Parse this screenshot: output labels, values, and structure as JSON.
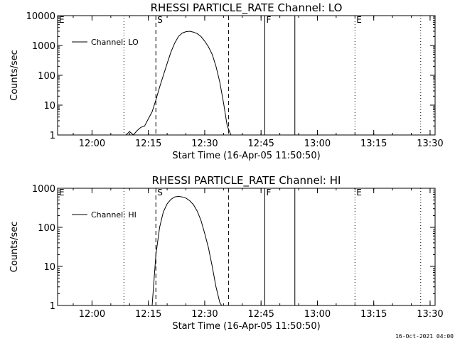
{
  "footer_timestamp": "16-Oct-2021 04:00",
  "chart_data": [
    {
      "type": "line",
      "title": "RHESSI PARTICLE_RATE Channel: LO",
      "xlabel": "Start Time (16-Apr-05 11:50:50)",
      "ylabel": "Counts/sec",
      "yscale": "log",
      "ylim": [
        1,
        10000
      ],
      "xlim": [
        "11:50:50",
        "13:31:20"
      ],
      "x_ticks": [
        "12:00",
        "12:15",
        "12:30",
        "12:45",
        "13:00",
        "13:15",
        "13:30"
      ],
      "y_ticks": [
        "1",
        "10",
        "100",
        "1000",
        "10000"
      ],
      "legend": {
        "entries": [
          "Channel: LO"
        ],
        "position": "top-left"
      },
      "series": [
        {
          "name": "Channel: LO",
          "x": [
            "12:09",
            "12:10",
            "12:11",
            "12:12",
            "12:13",
            "12:14",
            "12:15",
            "12:16",
            "12:17",
            "12:18",
            "12:19",
            "12:20",
            "12:21",
            "12:22",
            "12:23",
            "12:24",
            "12:25",
            "12:26",
            "12:27",
            "12:28",
            "12:29",
            "12:30",
            "12:31",
            "12:32",
            "12:33",
            "12:34",
            "12:35",
            "12:36",
            "12:37"
          ],
          "y": [
            1,
            1.3,
            1,
            1.4,
            1.8,
            2,
            3.5,
            6,
            15,
            40,
            100,
            250,
            600,
            1200,
            2000,
            2600,
            2900,
            3000,
            2800,
            2500,
            2000,
            1400,
            900,
            500,
            200,
            60,
            12,
            2,
            1
          ]
        }
      ],
      "markers": [
        {
          "label": "E",
          "time": "11:50:50",
          "style": "dotted"
        },
        {
          "label": "",
          "time": "12:08:30",
          "style": "dotted"
        },
        {
          "label": "S",
          "time": "12:17:00",
          "style": "dashed"
        },
        {
          "label": "",
          "time": "12:36:20",
          "style": "dashed"
        },
        {
          "label": "F",
          "time": "12:46:00",
          "style": "solid"
        },
        {
          "label": "",
          "time": "12:54:00",
          "style": "solid"
        },
        {
          "label": "E",
          "time": "13:10:00",
          "style": "dotted"
        },
        {
          "label": "",
          "time": "13:27:30",
          "style": "dotted"
        }
      ]
    },
    {
      "type": "line",
      "title": "RHESSI PARTICLE_RATE Channel: HI",
      "xlabel": "Start Time (16-Apr-05 11:50:50)",
      "ylabel": "Counts/sec",
      "yscale": "log",
      "ylim": [
        1,
        1000
      ],
      "xlim": [
        "11:50:50",
        "13:31:20"
      ],
      "x_ticks": [
        "12:00",
        "12:15",
        "12:30",
        "12:45",
        "13:00",
        "13:15",
        "13:30"
      ],
      "y_ticks": [
        "1",
        "10",
        "100",
        "1000"
      ],
      "legend": {
        "entries": [
          "Channel: HI"
        ],
        "position": "top-left"
      },
      "series": [
        {
          "name": "Channel: HI",
          "x": [
            "12:16:00",
            "12:17:00",
            "12:18:00",
            "12:19:00",
            "12:20:00",
            "12:21:00",
            "12:22:00",
            "12:23:00",
            "12:24:00",
            "12:25:00",
            "12:26:00",
            "12:27:00",
            "12:28:00",
            "12:29:00",
            "12:30:00",
            "12:31:00",
            "12:32:00",
            "12:33:00",
            "12:34:00",
            "12:34:30"
          ],
          "y": [
            1,
            20,
            100,
            250,
            400,
            520,
            600,
            620,
            600,
            560,
            480,
            380,
            260,
            150,
            70,
            30,
            10,
            3,
            1.2,
            1
          ]
        }
      ],
      "markers": [
        {
          "label": "E",
          "time": "11:50:50",
          "style": "dotted"
        },
        {
          "label": "",
          "time": "12:08:30",
          "style": "dotted"
        },
        {
          "label": "S",
          "time": "12:17:00",
          "style": "dashed"
        },
        {
          "label": "",
          "time": "12:36:20",
          "style": "dashed"
        },
        {
          "label": "F",
          "time": "12:46:00",
          "style": "solid"
        },
        {
          "label": "",
          "time": "12:54:00",
          "style": "solid"
        },
        {
          "label": "E",
          "time": "13:10:00",
          "style": "dotted"
        },
        {
          "label": "",
          "time": "13:27:30",
          "style": "dotted"
        }
      ]
    }
  ]
}
